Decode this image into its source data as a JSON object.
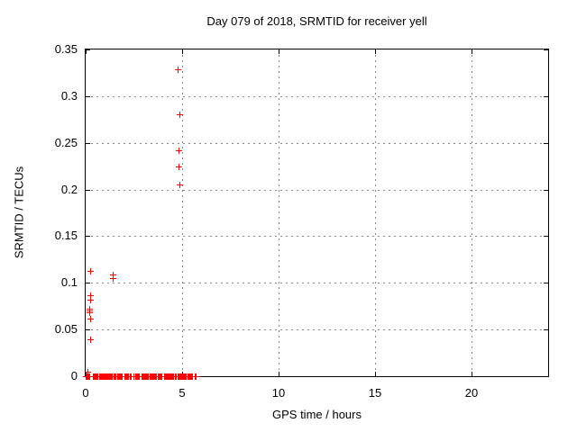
{
  "chart_data": {
    "type": "scatter",
    "title": "Day 079 of 2018, SRMTID for receiver yell",
    "xlabel": "GPS time / hours",
    "ylabel": "SRMTID / TECUs",
    "xlim": [
      0,
      24
    ],
    "ylim": [
      0,
      0.35
    ],
    "xticks": [
      0,
      5,
      10,
      15,
      20
    ],
    "xtick_labels": [
      "0",
      "5",
      "10",
      "15",
      "20"
    ],
    "yticks": [
      0,
      0.05,
      0.1,
      0.15,
      0.2,
      0.25,
      0.3,
      0.35
    ],
    "ytick_labels": [
      "0",
      "0.05",
      "0.1",
      "0.15",
      "0.2",
      "0.25",
      "0.3",
      "0.35"
    ],
    "grid": true,
    "legend_position": "none",
    "marker": "plus",
    "marker_color": "#ff0000",
    "grid_color": "#888888",
    "axis_color": "#000000",
    "series": [
      {
        "name": "SRMTID",
        "points": [
          [
            0.1,
            0.005
          ],
          [
            0.19,
            0.072
          ],
          [
            0.2,
            0.068
          ],
          [
            0.21,
            0.07
          ],
          [
            0.22,
            0.087
          ],
          [
            0.22,
            0.082
          ],
          [
            0.23,
            0.062
          ],
          [
            0.23,
            0.04
          ],
          [
            0.25,
            0.113
          ],
          [
            1.41,
            0.109
          ],
          [
            1.41,
            0.105
          ],
          [
            4.77,
            0.329
          ],
          [
            4.82,
            0.242
          ],
          [
            4.82,
            0.225
          ],
          [
            4.86,
            0.281
          ],
          [
            4.86,
            0.205
          ]
        ],
        "zero_value_runs": [
          [
            0.0,
            0.1
          ],
          [
            0.16,
            0.25
          ],
          [
            0.38,
            1.55
          ],
          [
            1.63,
            1.9
          ],
          [
            2.02,
            2.33
          ],
          [
            2.5,
            2.76
          ],
          [
            2.9,
            3.25
          ],
          [
            3.32,
            3.93
          ],
          [
            4.06,
            4.62
          ],
          [
            4.7,
            5.22
          ],
          [
            5.28,
            5.56
          ],
          [
            5.64,
            5.73
          ]
        ],
        "zero_run_point_step_hours": 0.05
      }
    ]
  }
}
